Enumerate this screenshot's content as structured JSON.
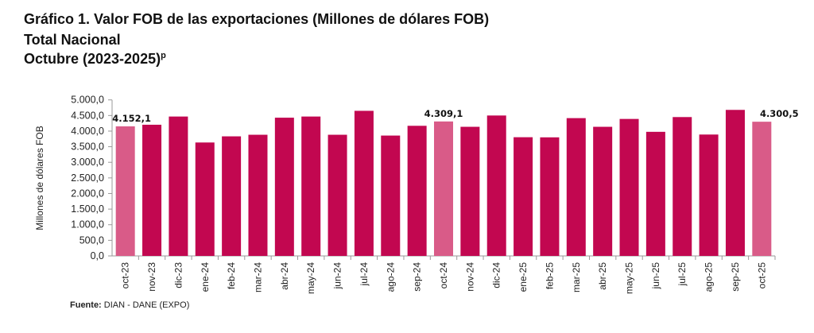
{
  "header": {
    "title": "Gráfico 1. Valor FOB de las exportaciones (Millones de dólares FOB)",
    "subtitle": "Total Nacional",
    "period": "Octubre (2023-2025)",
    "period_mark": "p"
  },
  "footer": {
    "label": "Fuente:",
    "source": "DIAN - DANE (EXPO)"
  },
  "chart_data": {
    "type": "bar",
    "ylabel": "Millones de dólares FOB",
    "ylim": [
      0,
      5000
    ],
    "yticks": [
      0,
      500,
      1000,
      1500,
      2000,
      2500,
      3000,
      3500,
      4000,
      4500,
      5000
    ],
    "ytick_labels": [
      "0,0",
      "500,0",
      "1.000,0",
      "1.500,0",
      "2.000,0",
      "2.500,0",
      "3.000,0",
      "3.500,0",
      "4.000,0",
      "4.500,0",
      "5.000,0"
    ],
    "categories": [
      "oct-23",
      "nov-23",
      "dic-23",
      "ene-24",
      "feb-24",
      "mar-24",
      "abr-24",
      "may-24",
      "jun-24",
      "jul-24",
      "ago-24",
      "sep-24",
      "oct-24",
      "nov-24",
      "dic-24",
      "ene-25",
      "feb-25",
      "mar-25",
      "abr-25",
      "may-25",
      "jun-25",
      "jul-25",
      "ago-25",
      "sep-25",
      "oct-25"
    ],
    "values": [
      4152.1,
      4204,
      4467,
      3635,
      3832,
      3883,
      4430,
      4467,
      3883,
      4650,
      3857,
      4170,
      4309.1,
      4138,
      4500,
      3804,
      3800,
      4416,
      4138,
      4390,
      3977,
      4450,
      3890,
      4680,
      4300.5
    ],
    "data_labels": {
      "0": "4.152,1",
      "12": "4.309,1",
      "24": "4.300,5"
    },
    "highlighted": [
      0,
      12,
      24
    ],
    "colors": {
      "bar": "#C20750",
      "highlight": "#D95B88"
    },
    "grid": false
  }
}
